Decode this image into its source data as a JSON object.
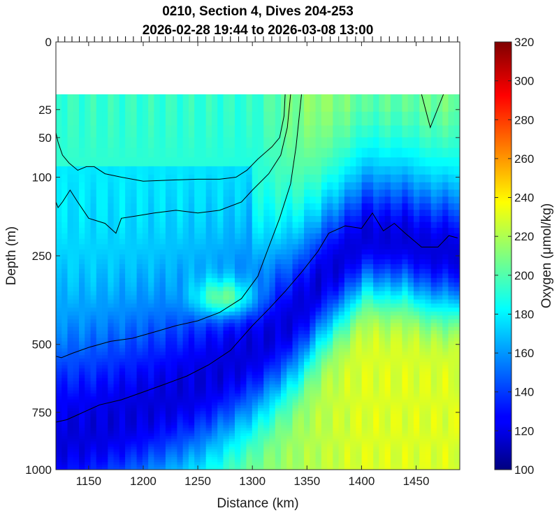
{
  "chart_data": {
    "type": "heatmap",
    "title": "0210, Section 4, Dives 204-253",
    "subtitle": "2026-02-28 19:44 to 2026-03-08 13:00",
    "xlabel": "Distance (km)",
    "ylabel": "Depth (m)",
    "colorbar_label": "Oxygen (μmol/kg)",
    "xlim": [
      1120,
      1490
    ],
    "ylim": [
      0,
      1000
    ],
    "y_scale": "sqrt",
    "x_ticks": [
      1150,
      1200,
      1250,
      1300,
      1350,
      1400,
      1450
    ],
    "y_ticks": [
      0,
      25,
      50,
      100,
      250,
      500,
      750,
      1000
    ],
    "colorbar_ticks": [
      100,
      120,
      140,
      160,
      180,
      200,
      220,
      240,
      260,
      280,
      300,
      320
    ],
    "colorbar_range": [
      100,
      320
    ],
    "colormap": "jet",
    "no_data_above_depth": 15,
    "dive_marker_count": 50,
    "contours": [
      {
        "x": [
          1330,
          1329,
          1325,
          1318,
          1305,
          1295,
          1285,
          1270,
          1250,
          1230,
          1200,
          1180,
          1165,
          1155,
          1148,
          1140,
          1132,
          1126,
          1122,
          1120
        ],
        "y": [
          15,
          30,
          50,
          60,
          75,
          90,
          100,
          103,
          103,
          104,
          106,
          100,
          95,
          85,
          85,
          90,
          80,
          70,
          55,
          45
        ]
      },
      {
        "x": [
          1335,
          1332,
          1326,
          1315,
          1300,
          1290,
          1270,
          1250,
          1230,
          1210,
          1195,
          1180,
          1175,
          1165,
          1150,
          1140,
          1133,
          1126,
          1122,
          1120
        ],
        "y": [
          15,
          40,
          70,
          95,
          120,
          140,
          155,
          160,
          155,
          160,
          165,
          170,
          200,
          180,
          170,
          140,
          120,
          140,
          150,
          140
        ]
      },
      {
        "x": [
          1345,
          1340,
          1335,
          1325,
          1315,
          1305,
          1290,
          1270,
          1250,
          1230,
          1210,
          1190,
          1170,
          1150,
          1135,
          1125,
          1120
        ],
        "y": [
          15,
          60,
          110,
          170,
          230,
          300,
          360,
          400,
          425,
          440,
          460,
          480,
          490,
          510,
          530,
          545,
          540
        ]
      },
      {
        "x": [
          1488,
          1480,
          1470,
          1455,
          1440,
          1430,
          1420,
          1410,
          1400,
          1385,
          1370,
          1360,
          1345,
          1330,
          1315,
          1300,
          1280,
          1260,
          1240,
          1220,
          1200,
          1180,
          1160,
          1140,
          1130,
          1120
        ],
        "y": [
          210,
          205,
          230,
          230,
          200,
          180,
          195,
          160,
          190,
          185,
          200,
          240,
          290,
          340,
          390,
          440,
          520,
          570,
          610,
          640,
          670,
          700,
          720,
          760,
          780,
          790
        ]
      },
      {
        "x": [
          1455,
          1463,
          1475
        ],
        "y": [
          15,
          40,
          15
        ]
      }
    ]
  }
}
